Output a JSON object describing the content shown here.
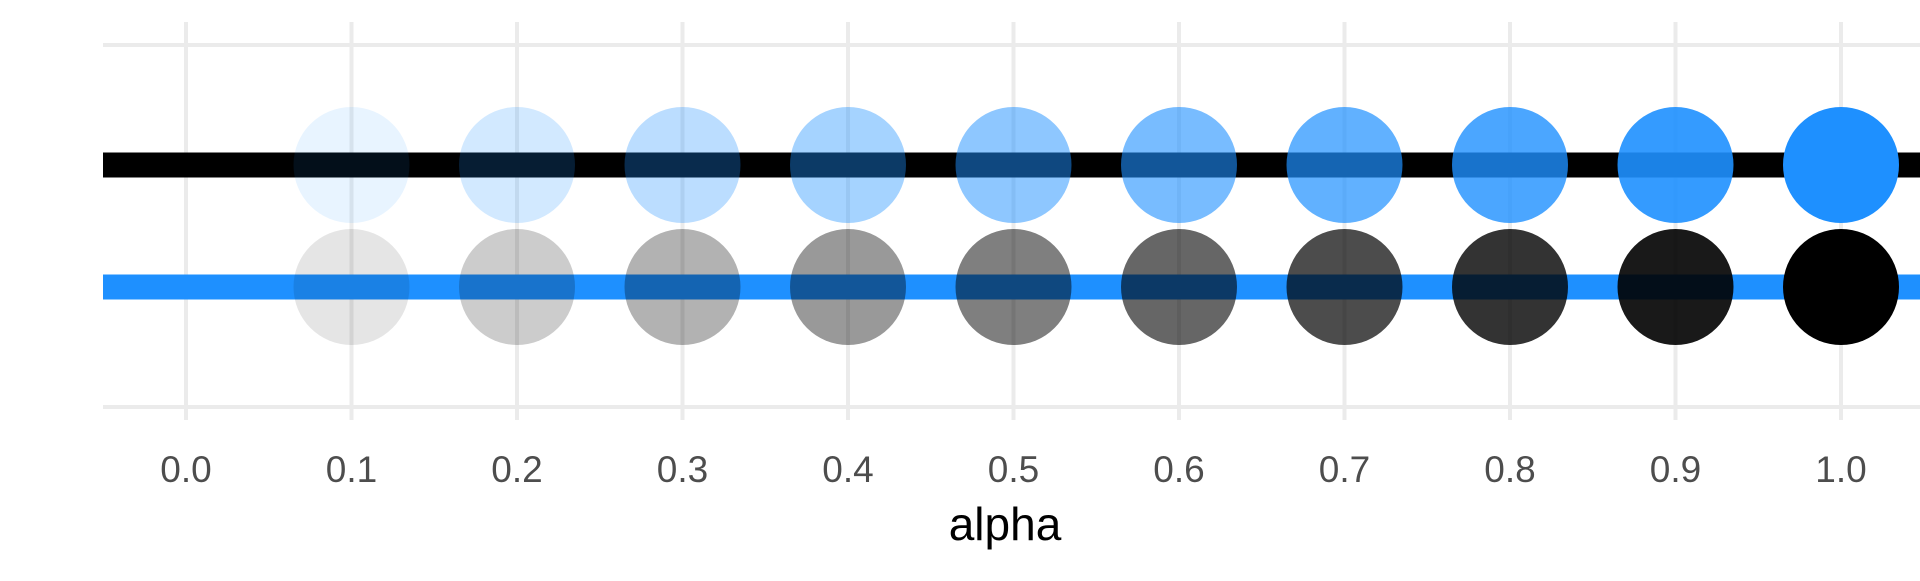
{
  "chart_data": {
    "type": "scatter",
    "title": "",
    "xlabel": "alpha",
    "ylabel": "",
    "x_ticks": [
      "0.0",
      "0.1",
      "0.2",
      "0.3",
      "0.4",
      "0.5",
      "0.6",
      "0.7",
      "0.8",
      "0.9",
      "1.0"
    ],
    "xlim": [
      -0.05,
      1.05
    ],
    "grid": true,
    "legend": "none",
    "rows": [
      {
        "line_color": "#000000",
        "point_color": "#1E90FF",
        "points": [
          {
            "alpha": 0.1
          },
          {
            "alpha": 0.2
          },
          {
            "alpha": 0.3
          },
          {
            "alpha": 0.4
          },
          {
            "alpha": 0.5
          },
          {
            "alpha": 0.6
          },
          {
            "alpha": 0.7
          },
          {
            "alpha": 0.8
          },
          {
            "alpha": 0.9
          },
          {
            "alpha": 1.0
          }
        ]
      },
      {
        "line_color": "#1E90FF",
        "point_color": "#000000",
        "points": [
          {
            "alpha": 0.1
          },
          {
            "alpha": 0.2
          },
          {
            "alpha": 0.3
          },
          {
            "alpha": 0.4
          },
          {
            "alpha": 0.5
          },
          {
            "alpha": 0.6
          },
          {
            "alpha": 0.7
          },
          {
            "alpha": 0.8
          },
          {
            "alpha": 0.9
          },
          {
            "alpha": 1.0
          }
        ]
      }
    ],
    "colors": {
      "grid": "#EBEBEB",
      "tick_text": "#4D4D4D",
      "axis_title": "#000000"
    }
  }
}
